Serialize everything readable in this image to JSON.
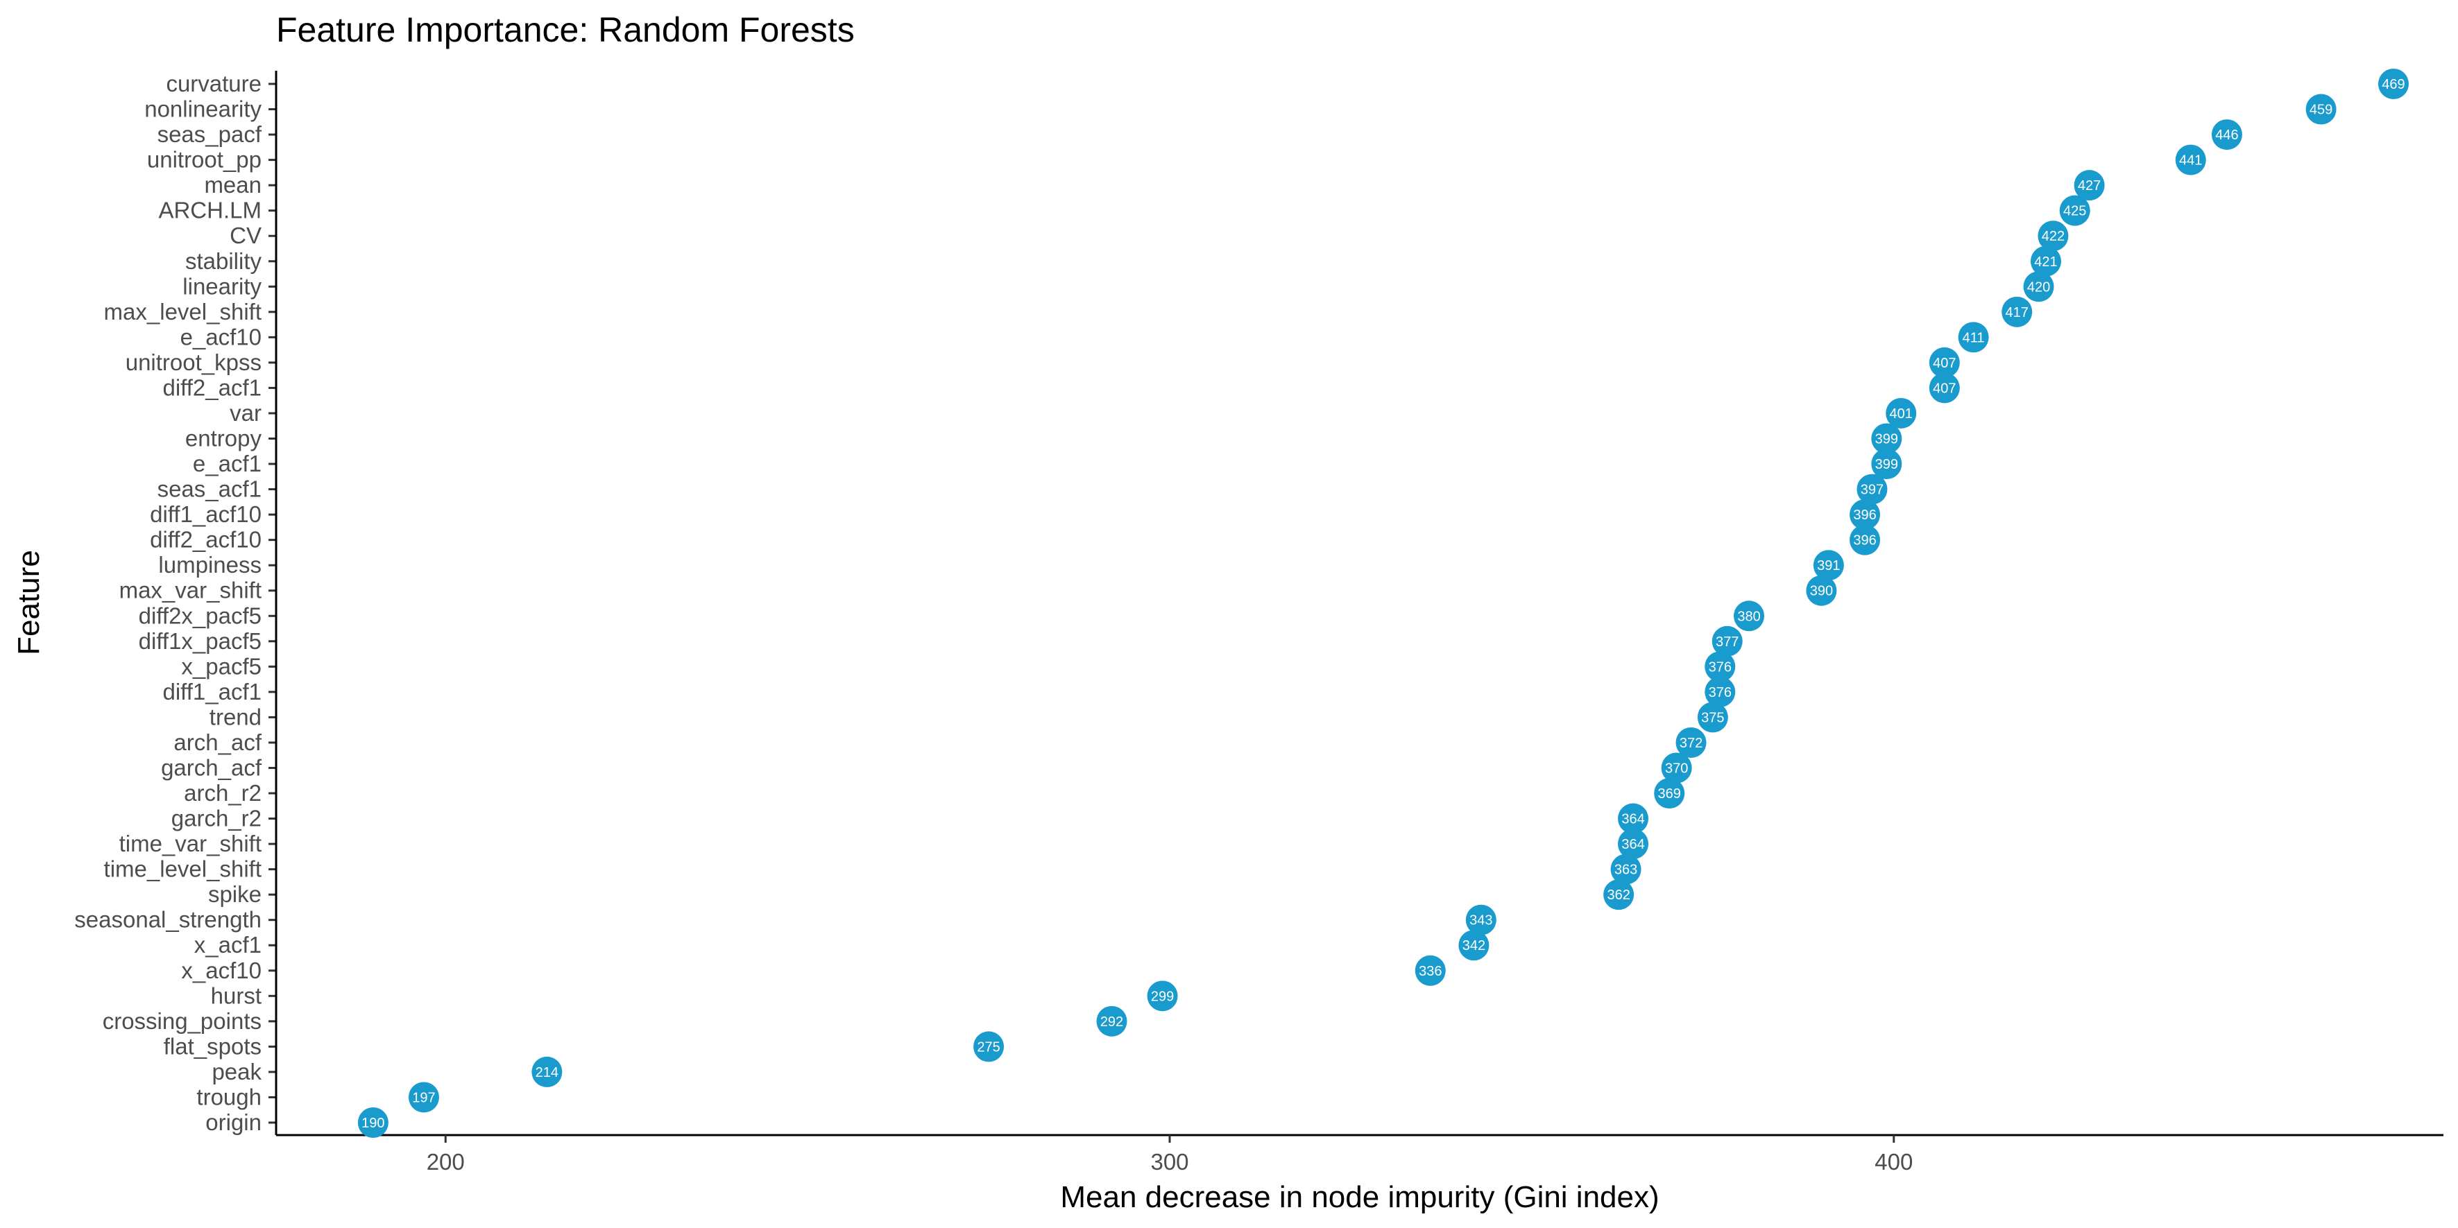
{
  "chart_data": {
    "type": "scatter",
    "title": "Feature Importance: Random Forests",
    "xlabel": "Mean decrease in node impurity (Gini index)",
    "ylabel": "Feature",
    "xlim": [
      176.6,
      475.9
    ],
    "xticks": [
      200,
      300,
      400
    ],
    "grid": false,
    "legend": "none",
    "point_color": "#1a9bcd",
    "label_color": "#ffffff",
    "points": [
      {
        "feature": "curvature",
        "value": 469,
        "label": "469"
      },
      {
        "feature": "nonlinearity",
        "value": 459,
        "label": "459"
      },
      {
        "feature": "seas_pacf",
        "value": 446,
        "label": "446"
      },
      {
        "feature": "unitroot_pp",
        "value": 441,
        "label": "441"
      },
      {
        "feature": "mean",
        "value": 427,
        "label": "427"
      },
      {
        "feature": "ARCH.LM",
        "value": 425,
        "label": "425"
      },
      {
        "feature": "CV",
        "value": 422,
        "label": "422"
      },
      {
        "feature": "stability",
        "value": 421,
        "label": "421"
      },
      {
        "feature": "linearity",
        "value": 420,
        "label": "420"
      },
      {
        "feature": "max_level_shift",
        "value": 417,
        "label": "417"
      },
      {
        "feature": "e_acf10",
        "value": 411,
        "label": "411"
      },
      {
        "feature": "unitroot_kpss",
        "value": 407,
        "label": "407"
      },
      {
        "feature": "diff2_acf1",
        "value": 407,
        "label": "407"
      },
      {
        "feature": "var",
        "value": 401,
        "label": "401"
      },
      {
        "feature": "entropy",
        "value": 399,
        "label": "399"
      },
      {
        "feature": "e_acf1",
        "value": 399,
        "label": "399"
      },
      {
        "feature": "seas_acf1",
        "value": 397,
        "label": "397"
      },
      {
        "feature": "diff1_acf10",
        "value": 396,
        "label": "396"
      },
      {
        "feature": "diff2_acf10",
        "value": 396,
        "label": "396"
      },
      {
        "feature": "lumpiness",
        "value": 391,
        "label": "391"
      },
      {
        "feature": "max_var_shift",
        "value": 390,
        "label": "390"
      },
      {
        "feature": "diff2x_pacf5",
        "value": 380,
        "label": "380"
      },
      {
        "feature": "diff1x_pacf5",
        "value": 377,
        "label": "377"
      },
      {
        "feature": "x_pacf5",
        "value": 376,
        "label": "376"
      },
      {
        "feature": "diff1_acf1",
        "value": 376,
        "label": "376"
      },
      {
        "feature": "trend",
        "value": 375,
        "label": "375"
      },
      {
        "feature": "arch_acf",
        "value": 372,
        "label": "372"
      },
      {
        "feature": "garch_acf",
        "value": 370,
        "label": "370"
      },
      {
        "feature": "arch_r2",
        "value": 369,
        "label": "369"
      },
      {
        "feature": "garch_r2",
        "value": 364,
        "label": "364"
      },
      {
        "feature": "time_var_shift",
        "value": 364,
        "label": "364"
      },
      {
        "feature": "time_level_shift",
        "value": 363,
        "label": "363"
      },
      {
        "feature": "spike",
        "value": 362,
        "label": "362"
      },
      {
        "feature": "seasonal_strength",
        "value": 343,
        "label": "343"
      },
      {
        "feature": "x_acf1",
        "value": 342,
        "label": "342"
      },
      {
        "feature": "x_acf10",
        "value": 336,
        "label": "336"
      },
      {
        "feature": "hurst",
        "value": 299,
        "label": "299"
      },
      {
        "feature": "crossing_points",
        "value": 292,
        "label": "292"
      },
      {
        "feature": "flat_spots",
        "value": 275,
        "label": "275"
      },
      {
        "feature": "peak",
        "value": 214,
        "label": "214"
      },
      {
        "feature": "trough",
        "value": 197,
        "label": "197"
      },
      {
        "feature": "origin",
        "value": 190,
        "label": "190"
      }
    ]
  }
}
